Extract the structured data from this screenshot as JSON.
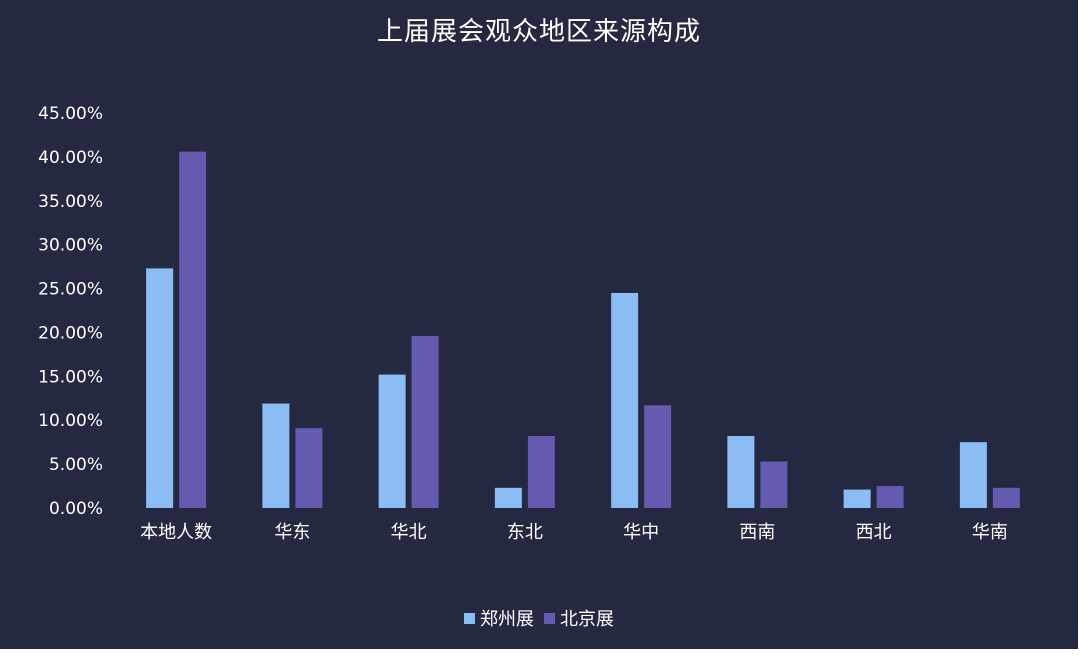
{
  "chart_data": {
    "type": "bar",
    "title": "上届展会观众地区来源构成",
    "categories": [
      "本地人数",
      "华东",
      "华北",
      "东北",
      "华中",
      "西南",
      "西北",
      "华南"
    ],
    "series": [
      {
        "name": "郑州展",
        "color": "#8bbcf3",
        "values": [
          27.3,
          11.9,
          15.2,
          2.3,
          24.5,
          8.2,
          2.1,
          7.5
        ]
      },
      {
        "name": "北京展",
        "color": "#635bb0",
        "values": [
          40.6,
          9.1,
          19.6,
          8.2,
          11.7,
          5.3,
          2.5,
          2.3
        ]
      }
    ],
    "yticks": [
      "0.00%",
      "5.00%",
      "10.00%",
      "15.00%",
      "20.00%",
      "25.00%",
      "30.00%",
      "35.00%",
      "40.00%",
      "45.00%"
    ],
    "ylim": [
      0,
      45
    ],
    "grid": false,
    "legend_position": "bottom-center",
    "background": "#252841"
  }
}
